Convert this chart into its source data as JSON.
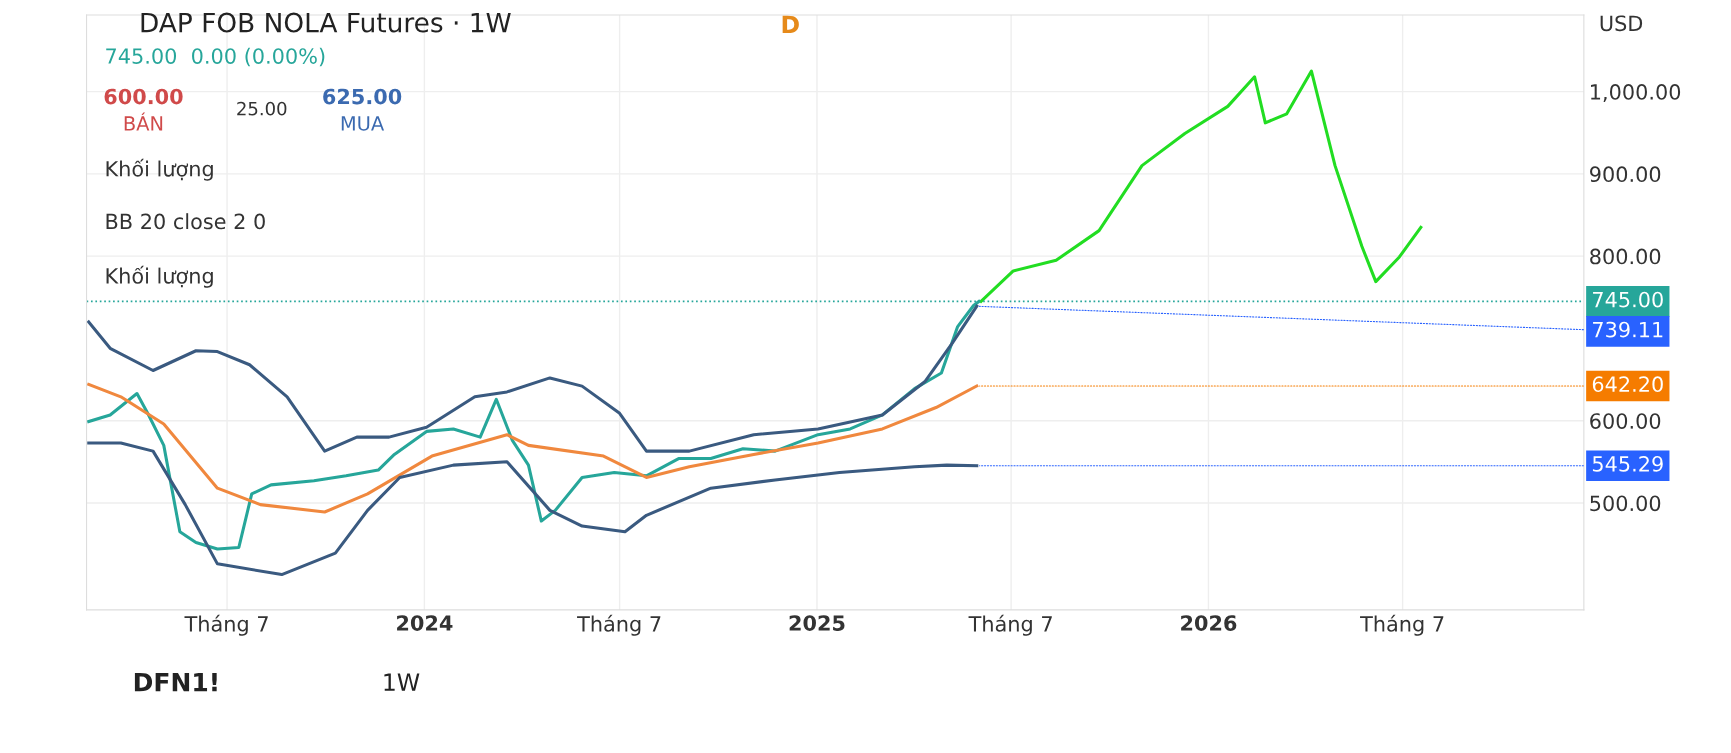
{
  "chart_data": {
    "type": "line",
    "title": "DAP FOB NOLA Futures · 1W",
    "subtitle": "745.00  0.00 (0.00%)",
    "series": [
      {
        "color": "#26a69a",
        "x": [
          "2023-02-22",
          "2023-03-14",
          "2023-04-08",
          "2023-04-18",
          "2023-05-03",
          "2023-05-18",
          "2023-06-02",
          "2023-06-22",
          "2023-07-12",
          "2023-07-24",
          "2023-08-11",
          "2023-09-20",
          "2023-10-20",
          "2023-11-19",
          "2023-12-04",
          "2024-01-03",
          "2024-01-28",
          "2024-02-22",
          "2024-03-08",
          "2024-03-23",
          "2024-04-07",
          "2024-04-19",
          "2024-05-02",
          "2024-05-27",
          "2024-06-26",
          "2024-07-26",
          "2024-08-25",
          "2024-09-24",
          "2024-10-24",
          "2024-11-23",
          "2025-01-02",
          "2025-02-01",
          "2025-03-03",
          "2025-04-02",
          "2025-04-27",
          "2025-05-12",
          "2025-05-27",
          "2025-06-01"
        ],
        "values": [
          599,
          607,
          633,
          609,
          570,
          465,
          452,
          444,
          446,
          511,
          522,
          527,
          533,
          540,
          559,
          587,
          590,
          580,
          626,
          576,
          546,
          478,
          491,
          531,
          537,
          533,
          554,
          554,
          566,
          563,
          583,
          590,
          607,
          639,
          658,
          714,
          740,
          745
        ]
      },
      {
        "color": "#3a5a80",
        "x": [
          "2023-02-22",
          "2023-03-14",
          "2023-04-23",
          "2023-06-02",
          "2023-06-22",
          "2023-07-22",
          "2023-08-26",
          "2023-09-30",
          "2023-10-30",
          "2023-11-29",
          "2024-01-03",
          "2024-02-17",
          "2024-03-18",
          "2024-04-27",
          "2024-05-27",
          "2024-07-01",
          "2024-07-26",
          "2024-09-04",
          "2024-11-03",
          "2025-01-02",
          "2025-03-03",
          "2025-04-12",
          "2025-05-07",
          "2025-05-30"
        ],
        "values": [
          720,
          688,
          661,
          685,
          684,
          668,
          629,
          563,
          580,
          580,
          592,
          629,
          635,
          652,
          642,
          609,
          563,
          563,
          583,
          590,
          607,
          648,
          694,
          739.11
        ]
      },
      {
        "color": "#f0883e",
        "x": [
          "2023-02-22",
          "2023-03-24",
          "2023-05-03",
          "2023-06-22",
          "2023-08-01",
          "2023-09-30",
          "2023-11-09",
          "2024-01-08",
          "2024-03-18",
          "2024-04-07",
          "2024-06-16",
          "2024-07-26",
          "2024-09-04",
          "2024-11-03",
          "2025-01-02",
          "2025-03-03",
          "2025-04-22",
          "2025-05-30"
        ],
        "values": [
          644,
          629,
          596,
          518,
          498,
          489,
          511,
          557,
          583,
          570,
          557,
          531,
          544,
          559,
          573,
          590,
          616,
          642.2
        ]
      },
      {
        "color": "#3a5a80",
        "x": [
          "2023-02-22",
          "2023-03-24",
          "2023-04-23",
          "2023-05-23",
          "2023-06-22",
          "2023-08-21",
          "2023-10-10",
          "2023-11-09",
          "2023-12-09",
          "2024-01-28",
          "2024-03-18",
          "2024-04-27",
          "2024-05-27",
          "2024-07-06",
          "2024-07-26",
          "2024-09-24",
          "2024-11-23",
          "2025-01-22",
          "2025-04-02",
          "2025-05-02",
          "2025-05-30"
        ],
        "values": [
          573,
          573,
          563,
          498,
          426,
          413,
          439,
          491,
          531,
          546,
          550,
          491,
          472,
          465,
          485,
          518,
          528,
          537,
          544,
          546,
          545.29
        ]
      },
      {
        "color": "#22dd22",
        "x": [
          "2025-06-03",
          "2025-07-03",
          "2025-08-12",
          "2025-09-21",
          "2025-10-31",
          "2025-12-10",
          "2026-01-19",
          "2026-02-13",
          "2026-02-23",
          "2026-03-15",
          "2026-04-07",
          "2026-04-29",
          "2026-05-24",
          "2026-06-06",
          "2026-06-28",
          "2026-07-18"
        ],
        "values": [
          745,
          782,
          795,
          831,
          910,
          949,
          982,
          1018,
          962,
          973,
          1025,
          910,
          812,
          769,
          799,
          835
        ]
      }
    ],
    "xlim": [
      "2023-02-20",
      "2026-12-17"
    ],
    "xticks": [
      {
        "value": "2023-07-01",
        "label": "Tháng 7"
      },
      {
        "value": "2024-01-01",
        "label": "2024"
      },
      {
        "value": "2024-07-01",
        "label": "Tháng 7"
      },
      {
        "value": "2025-01-01",
        "label": "2025"
      },
      {
        "value": "2025-07-01",
        "label": "Tháng 7"
      },
      {
        "value": "2026-01-01",
        "label": "2026"
      },
      {
        "value": "2026-07-01",
        "label": "Tháng 7"
      }
    ],
    "ylim": [
      370,
      1093
    ],
    "yticks": [
      {
        "value": 500,
        "label": "500.00"
      },
      {
        "value": 600,
        "label": "600.00"
      },
      {
        "value": 800,
        "label": "800.00"
      },
      {
        "value": 900,
        "label": "900.00"
      },
      {
        "value": 1000,
        "label": "1,000.00"
      }
    ],
    "ref_lines": [
      {
        "axis": "y",
        "value": 745,
        "label": "745.00",
        "color": "#26a69a",
        "line_style": "dotted"
      }
    ],
    "annotations": [
      {
        "text": "739.11",
        "x": "2025-05-30",
        "y": 739.11
      },
      {
        "text": "642.20",
        "x": "2025-05-30",
        "y": 642.2
      },
      {
        "text": "545.29",
        "x": "2025-05-30",
        "y": 545.29
      },
      "600.00",
      "BÁN",
      "25.00",
      "625.00",
      "MUA",
      "Khối lượng",
      "BB 20 close 2 0",
      "Khối lượng",
      "USD",
      "D",
      "DFN1!",
      "1W"
    ],
    "grid": true,
    "line_style": "solid",
    "marker": "none"
  }
}
